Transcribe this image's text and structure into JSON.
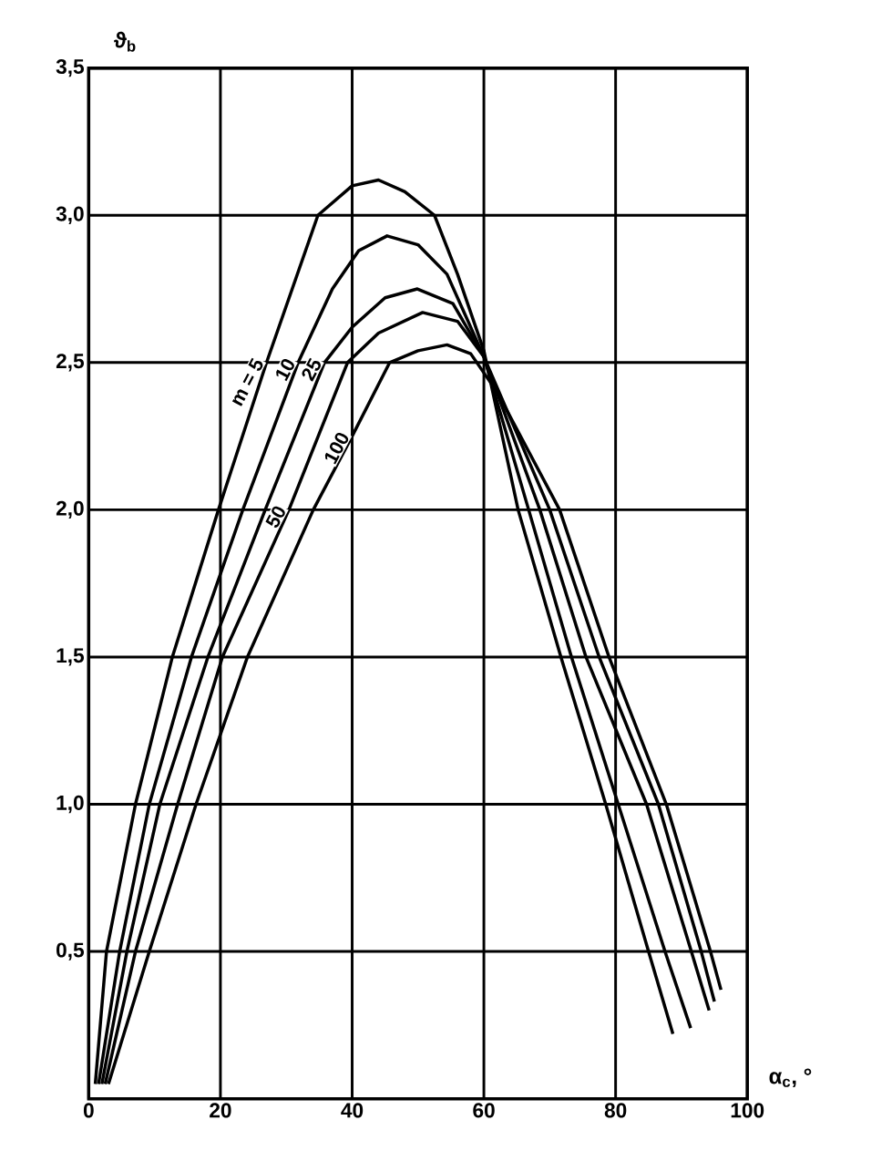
{
  "chart_data": {
    "type": "line",
    "xlabel": "α$_{c}$, °",
    "ylabel": "ϑ$_{b}$",
    "xlim": [
      0,
      100
    ],
    "xticks": [
      0,
      20,
      40,
      60,
      80,
      100
    ],
    "ylim": [
      0,
      3.5
    ],
    "yticks": [
      {
        "value": 0.5,
        "label": "0,5"
      },
      {
        "value": 1.0,
        "label": "1,0"
      },
      {
        "value": 1.5,
        "label": "1,5"
      },
      {
        "value": 2.0,
        "label": "2,0"
      },
      {
        "value": 2.5,
        "label": "2,5"
      },
      {
        "value": 3.0,
        "label": "3,0"
      },
      {
        "value": 3.5,
        "label": "3,5"
      }
    ],
    "grid": true,
    "marker": "none",
    "line_style": "solid",
    "series": [
      {
        "name": "m = 5",
        "color": "#000000",
        "x": [
          1,
          2.7,
          7.1,
          12.7,
          19.7,
          27,
          34.8,
          40,
          44,
          48,
          52.5,
          56,
          60,
          65.2,
          71.7,
          78.5,
          85,
          88.7
        ],
        "values": [
          0.05,
          0.5,
          1.0,
          1.5,
          2.0,
          2.5,
          3.0,
          3.1,
          3.12,
          3.08,
          3.0,
          2.8,
          2.54,
          2.0,
          1.5,
          1.0,
          0.5,
          0.22
        ]
      },
      {
        "name": "10",
        "color": "#000000",
        "x": [
          1.5,
          4.7,
          9.2,
          15.6,
          23.4,
          31.8,
          37,
          41,
          45.3,
          50,
          54.4,
          60,
          66.8,
          73.3,
          80.4,
          87.5,
          91.4
        ],
        "values": [
          0.05,
          0.5,
          1.0,
          1.5,
          2.0,
          2.5,
          2.75,
          2.88,
          2.93,
          2.9,
          2.8,
          2.52,
          2.0,
          1.5,
          1.0,
          0.5,
          0.24
        ]
      },
      {
        "name": "25",
        "color": "#000000",
        "x": [
          2,
          5.8,
          10.8,
          18.1,
          26.8,
          35.8,
          40,
          45,
          49.9,
          55.3,
          60,
          68.5,
          75.5,
          84.7,
          91.5,
          94.2
        ],
        "values": [
          0.05,
          0.5,
          1.0,
          1.5,
          2.0,
          2.5,
          2.62,
          2.72,
          2.75,
          2.7,
          2.52,
          2.0,
          1.5,
          1.0,
          0.5,
          0.3
        ]
      },
      {
        "name": "50",
        "color": "#000000",
        "x": [
          2.5,
          7.1,
          13.5,
          20.3,
          30.4,
          39.3,
          44,
          50.7,
          56,
          60,
          70,
          77.5,
          86.5,
          93,
          95
        ],
        "values": [
          0.05,
          0.5,
          1.0,
          1.5,
          2.0,
          2.5,
          2.6,
          2.67,
          2.64,
          2.52,
          2.0,
          1.5,
          1.0,
          0.5,
          0.33
        ]
      },
      {
        "name": "100",
        "color": "#000000",
        "x": [
          3,
          9.2,
          16.3,
          24.1,
          34.1,
          40,
          45.7,
          50,
          54.4,
          58,
          62,
          71.5,
          79,
          87.7,
          94.4,
          96
        ],
        "values": [
          0.05,
          0.5,
          1.0,
          1.5,
          2.0,
          2.25,
          2.5,
          2.54,
          2.56,
          2.53,
          2.4,
          2.0,
          1.5,
          1.0,
          0.5,
          0.37
        ]
      }
    ]
  }
}
